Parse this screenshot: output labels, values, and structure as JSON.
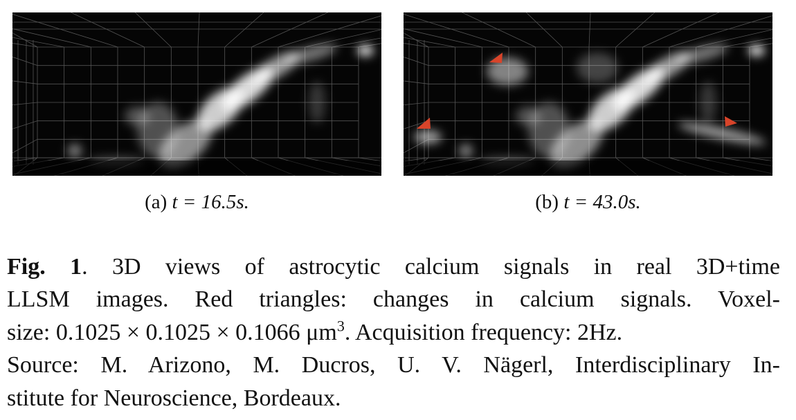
{
  "figure": {
    "subfigures": [
      {
        "label": "(a)",
        "math": "t = 16.5s."
      },
      {
        "label": "(b)",
        "math": "t = 43.0s."
      }
    ],
    "caption": {
      "line1": {
        "label": "Fig. 1",
        "text": ".  3D views of astrocytic calcium signals in real 3D+time"
      },
      "line2": "LLSM images.  Red triangles:  changes in calcium signals.  Voxel-",
      "line3": {
        "text": "size: ",
        "math": "0.1025 × 0.1025 × 0.1066 μm",
        "sup": "3",
        "rest": ". Acquisition frequency: 2Hz."
      },
      "line4": "Source: M. Arizono, M. Ducros, U. V. Nägerl, Interdisciplinary In-",
      "line5": "stitute for Neuroscience, Bordeaux."
    }
  }
}
